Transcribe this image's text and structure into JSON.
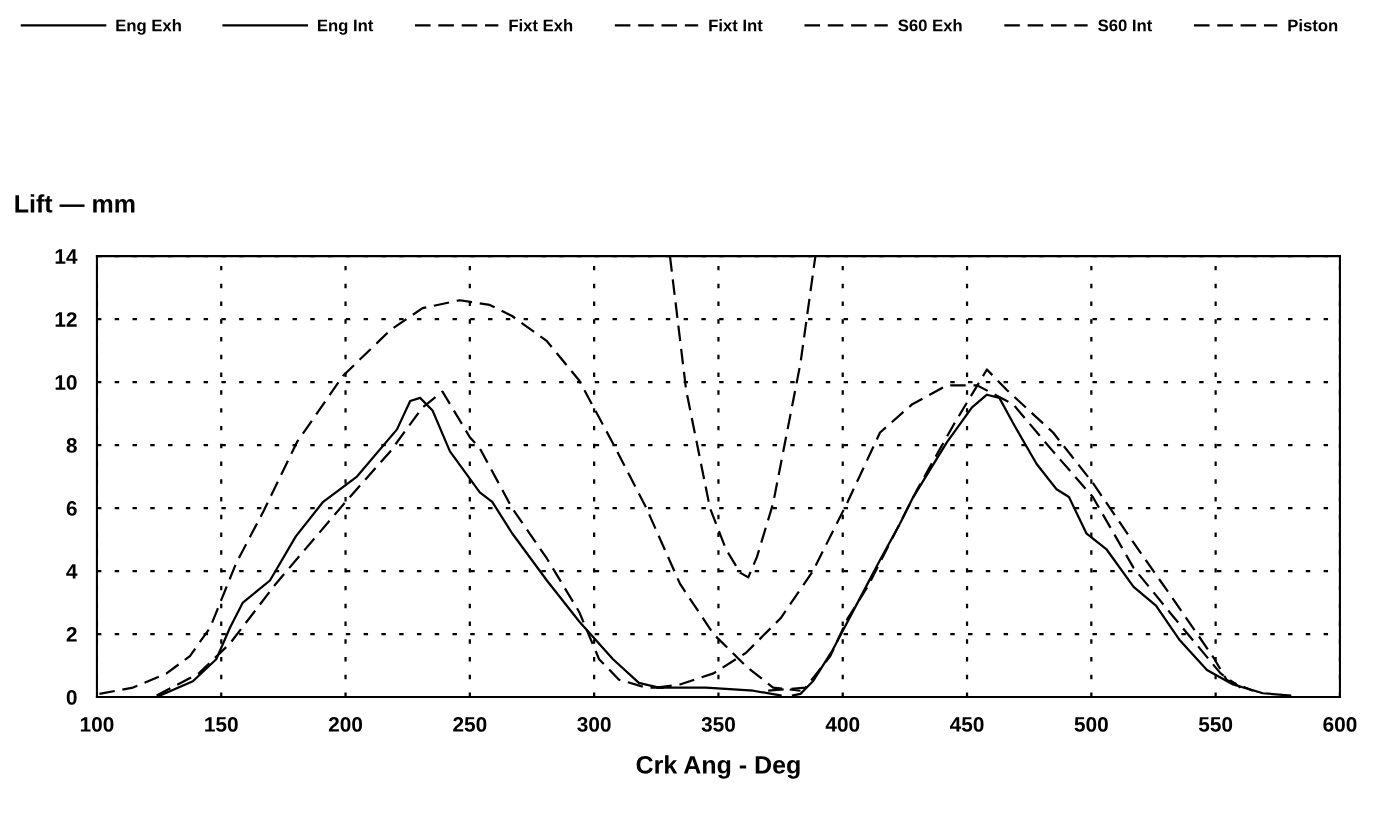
{
  "chart_data": {
    "type": "line",
    "xlabel": "Crk Ang - Deg",
    "ylabel": "Lift — mm",
    "xlim": [
      100,
      600
    ],
    "xticks": [
      100,
      150,
      200,
      250,
      300,
      350,
      400,
      450,
      500,
      550,
      600
    ],
    "ylim": [
      0,
      14
    ],
    "yticks": [
      0,
      2,
      4,
      6,
      8,
      10,
      12,
      14
    ],
    "grid": true,
    "legend": "top",
    "marker": "none",
    "series": [
      {
        "name": "Eng Exh",
        "color": "#000000",
        "line_style": "solid",
        "x": [
          124,
          138.6,
          148,
          153.5,
          158.7,
          169.6,
          180,
          191,
          204.6,
          220.7,
          226,
          230,
          235,
          242,
          254,
          259,
          267,
          281,
          294,
          307.6,
          318,
          326,
          345,
          364,
          375
        ],
        "values": [
          0,
          0.5,
          1.2,
          2.2,
          3.0,
          3.7,
          5.1,
          6.2,
          7.0,
          8.5,
          9.4,
          9.5,
          9.1,
          7.8,
          6.5,
          6.2,
          5.2,
          3.7,
          2.4,
          1.2,
          0.45,
          0.3,
          0.3,
          0.2,
          0.05
        ]
      },
      {
        "name": "Eng Int",
        "color": "#000000",
        "line_style": "solid",
        "x": [
          380,
          383,
          388,
          396,
          408,
          415,
          423,
          428,
          442,
          452,
          458,
          463,
          468.5,
          478,
          486,
          491,
          498,
          506,
          517,
          526,
          535.6,
          546.5,
          557,
          569,
          580
        ],
        "values": [
          0.05,
          0.1,
          0.5,
          1.5,
          3.3,
          4.35,
          5.5,
          6.3,
          8.1,
          9.2,
          9.6,
          9.5,
          8.7,
          7.4,
          6.6,
          6.35,
          5.2,
          4.7,
          3.5,
          2.9,
          1.8,
          0.86,
          0.4,
          0.12,
          0.05
        ]
      },
      {
        "name": "Fixt Exh",
        "color": "#000000",
        "line_style": "dashed",
        "x": [
          124,
          141,
          153.5,
          172,
          200.6,
          218,
          231,
          239,
          250,
          254,
          267,
          281,
          294,
          302,
          310,
          321,
          328
        ],
        "values": [
          0.05,
          0.75,
          1.7,
          3.6,
          6.25,
          7.8,
          9.2,
          9.7,
          8.25,
          7.9,
          6.0,
          4.4,
          2.7,
          1.2,
          0.55,
          0.3,
          0.3
        ]
      },
      {
        "name": "Fixt Int",
        "color": "#000000",
        "line_style": "dashed",
        "x": [
          370,
          385,
          395,
          402,
          410,
          430,
          445,
          458,
          466,
          484.6,
          500.6,
          517,
          533,
          549,
          554.5,
          565
        ],
        "values": [
          0.2,
          0.3,
          1.3,
          2.5,
          3.5,
          6.6,
          8.7,
          10.4,
          9.75,
          8.4,
          6.8,
          4.9,
          3.1,
          1.27,
          0.54,
          0.2
        ]
      },
      {
        "name": "S60 Exh",
        "color": "#000000",
        "line_style": "dashed",
        "x": [
          101,
          114.5,
          128,
          137.4,
          145.5,
          156,
          167,
          180.5,
          199,
          218,
          231,
          246,
          258,
          267,
          281,
          294,
          307.6,
          321,
          334.5,
          348,
          361.5,
          372,
          383
        ],
        "values": [
          0.1,
          0.3,
          0.75,
          1.3,
          2.2,
          4.25,
          5.9,
          8.1,
          10.2,
          11.65,
          12.35,
          12.6,
          12.45,
          12.1,
          11.3,
          10.05,
          8.05,
          6.0,
          3.6,
          2.0,
          0.95,
          0.3,
          0.2
        ]
      },
      {
        "name": "S60 Int",
        "color": "#000000",
        "line_style": "dashed",
        "x": [
          325,
          334.5,
          348,
          361,
          375,
          388,
          402,
          415,
          428,
          442,
          454,
          468.5,
          484.6,
          500.6,
          517,
          533,
          552,
          560
        ],
        "values": [
          0.3,
          0.4,
          0.75,
          1.4,
          2.5,
          4.0,
          6.2,
          8.4,
          9.3,
          9.9,
          9.9,
          9.3,
          7.8,
          6.35,
          4.1,
          2.55,
          0.75,
          0.3
        ]
      },
      {
        "name": "Piston",
        "color": "#000000",
        "line_style": "dashed",
        "x": [
          330.5,
          337,
          346.6,
          353,
          358.7,
          362,
          365.5,
          372,
          383,
          389
        ],
        "values": [
          14,
          9.75,
          6.0,
          4.7,
          3.95,
          3.8,
          4.45,
          6.15,
          10.6,
          14
        ]
      }
    ]
  }
}
